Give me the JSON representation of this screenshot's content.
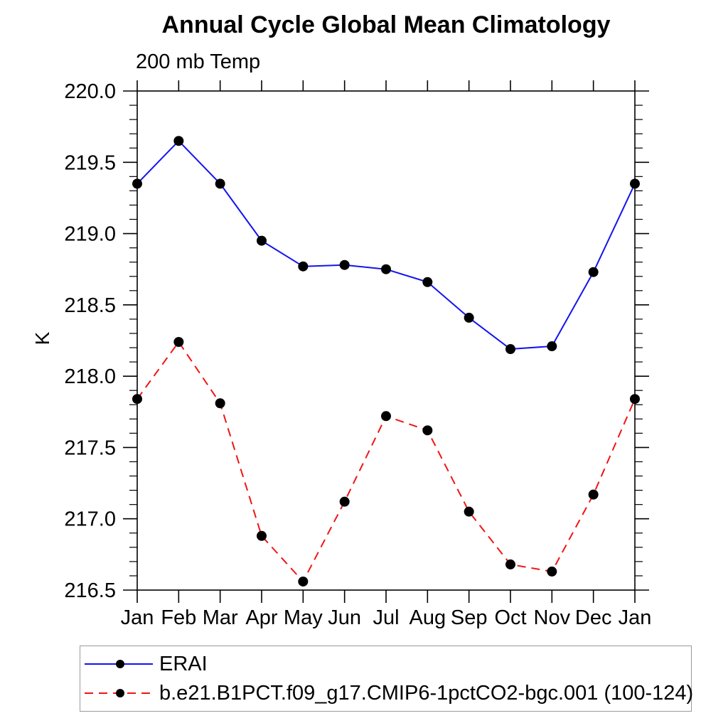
{
  "title": "Annual Cycle Global Mean Climatology",
  "subtitle": "200 mb Temp",
  "chart_data": {
    "type": "line",
    "categories": [
      "Jan",
      "Feb",
      "Mar",
      "Apr",
      "May",
      "Jun",
      "Jul",
      "Aug",
      "Sep",
      "Oct",
      "Nov",
      "Dec",
      "Jan"
    ],
    "series": [
      {
        "name": "ERAI",
        "color": "#1414f0",
        "line_style": "solid",
        "marker": "filled-circle",
        "marker_color": "#000000",
        "values": [
          219.35,
          219.65,
          219.35,
          218.95,
          218.77,
          218.78,
          218.75,
          218.66,
          218.41,
          218.19,
          218.21,
          218.73,
          219.35
        ]
      },
      {
        "name": "b.e21.B1PCT.f09_g17.CMIP6-1pctCO2-bgc.001 (100-124)",
        "color": "#f01414",
        "line_style": "dashed",
        "marker": "filled-circle",
        "marker_color": "#000000",
        "values": [
          217.84,
          218.24,
          217.81,
          216.88,
          216.56,
          217.12,
          217.72,
          217.62,
          217.05,
          216.68,
          216.63,
          217.17,
          217.84
        ]
      }
    ],
    "xlabel": "",
    "ylabel": "K",
    "ylim": [
      216.5,
      220.0
    ],
    "ytick_step": 0.5,
    "yminor_step": 0.1,
    "ytick_format_decimals": 1,
    "grid": false,
    "legend_position": "bottom-left-box",
    "axis_color": "#000000"
  }
}
